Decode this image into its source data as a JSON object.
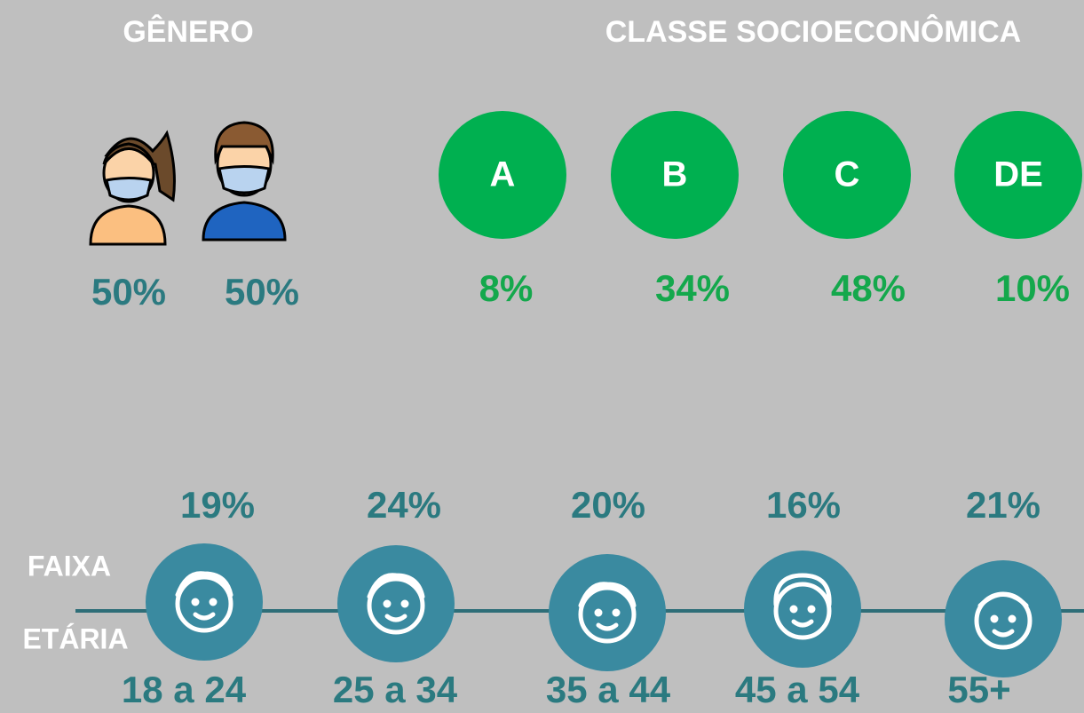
{
  "gender": {
    "title": "GÊNERO",
    "items": [
      "50%",
      "50%"
    ]
  },
  "class": {
    "title": "CLASSE SOCIOECONÔMICA",
    "items": [
      {
        "label": "A",
        "percent": "8%"
      },
      {
        "label": "B",
        "percent": "34%"
      },
      {
        "label": "C",
        "percent": "48%"
      },
      {
        "label": "DE",
        "percent": "10%"
      }
    ]
  },
  "age": {
    "title_line1": "FAIXA",
    "title_line2": "ETÁRIA",
    "items": [
      {
        "label": "18 a 24",
        "percent": "19%"
      },
      {
        "label": "25 a 34",
        "percent": "24%"
      },
      {
        "label": "35 a 44",
        "percent": "20%"
      },
      {
        "label": "45 a 54",
        "percent": "16%"
      },
      {
        "label": "55+",
        "percent": "21%"
      }
    ]
  }
}
